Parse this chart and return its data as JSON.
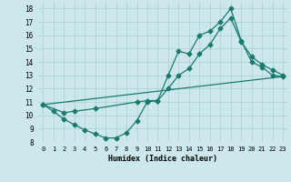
{
  "xlabel": "Humidex (Indice chaleur)",
  "background_color": "#cce8ec",
  "grid_color": "#aacdd4",
  "line_color": "#1a7a6e",
  "xlim": [
    -0.5,
    23.5
  ],
  "ylim": [
    8,
    18.5
  ],
  "xticks": [
    0,
    1,
    2,
    3,
    4,
    5,
    6,
    7,
    8,
    9,
    10,
    11,
    12,
    13,
    14,
    15,
    16,
    17,
    18,
    19,
    20,
    21,
    22,
    23
  ],
  "yticks": [
    8,
    9,
    10,
    11,
    12,
    13,
    14,
    15,
    16,
    17,
    18
  ],
  "line1_x": [
    0,
    1,
    2,
    3,
    4,
    5,
    6,
    7,
    8,
    9,
    10,
    11,
    12,
    13,
    14,
    15,
    16,
    17,
    18,
    19,
    20,
    21,
    22,
    23
  ],
  "line1_y": [
    10.8,
    10.3,
    9.7,
    9.3,
    8.9,
    8.6,
    8.3,
    8.3,
    8.7,
    9.6,
    11.0,
    11.1,
    13.0,
    14.8,
    14.6,
    16.0,
    16.3,
    17.0,
    18.0,
    15.6,
    14.0,
    13.6,
    13.0,
    12.9
  ],
  "line2_x": [
    0,
    2,
    3,
    5,
    9,
    10,
    11,
    12,
    13,
    14,
    15,
    16,
    17,
    18,
    19,
    20,
    21,
    22,
    23
  ],
  "line2_y": [
    10.8,
    10.2,
    10.3,
    10.5,
    11.0,
    11.1,
    11.1,
    12.0,
    13.0,
    13.5,
    14.6,
    15.3,
    16.5,
    17.3,
    15.5,
    14.4,
    13.8,
    13.4,
    13.0
  ],
  "line3_x": [
    0,
    23
  ],
  "line3_y": [
    10.8,
    12.9
  ]
}
